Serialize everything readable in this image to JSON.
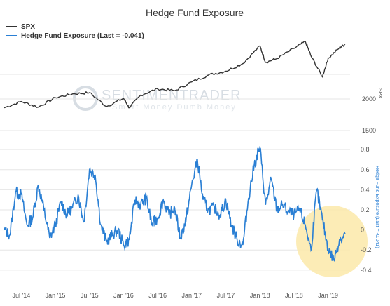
{
  "chart_data": [
    {
      "type": "line",
      "title": "Hedge Fund Exposure",
      "series": [
        {
          "name": "SPX",
          "color": "#333333",
          "x": [
            "2014-04",
            "2014-07",
            "2014-10",
            "2015-01",
            "2015-04",
            "2015-07",
            "2015-10",
            "2016-01",
            "2016-02",
            "2016-04",
            "2016-07",
            "2016-10",
            "2017-01",
            "2017-04",
            "2017-07",
            "2017-10",
            "2018-01",
            "2018-02",
            "2018-04",
            "2018-07",
            "2018-09",
            "2018-10",
            "2018-12",
            "2019-01",
            "2019-03",
            "2019-04"
          ],
          "values": [
            1860,
            1960,
            1870,
            2020,
            2080,
            2100,
            1880,
            2010,
            1860,
            2060,
            2160,
            2130,
            2270,
            2380,
            2440,
            2560,
            2840,
            2580,
            2640,
            2800,
            2910,
            2680,
            2350,
            2640,
            2810,
            2870
          ]
        }
      ],
      "y_axis": {
        "side": "right",
        "ticks": [
          "1500",
          "2000"
        ],
        "label": "SPX",
        "range": [
          1500,
          2900
        ]
      },
      "x_axis": {
        "ticks": [
          "Jul '14",
          "Jan '15",
          "Jul '15",
          "Jan '16",
          "Jul '16",
          "Jan '17",
          "Jul '17",
          "Jan '18",
          "Jul '18",
          "Jan '19"
        ]
      }
    },
    {
      "type": "line",
      "series": [
        {
          "name": "Hedge Fund Exposure (Last = -0.041)",
          "color": "#2a7fd4",
          "x": [
            "2014-04",
            "2014-05",
            "2014-06",
            "2014-07",
            "2014-08",
            "2014-09",
            "2014-10",
            "2014-11",
            "2014-12",
            "2015-01",
            "2015-02",
            "2015-03",
            "2015-04",
            "2015-05",
            "2015-06",
            "2015-07",
            "2015-08",
            "2015-09",
            "2015-10",
            "2015-11",
            "2015-12",
            "2016-01",
            "2016-02",
            "2016-03",
            "2016-04",
            "2016-05",
            "2016-06",
            "2016-07",
            "2016-08",
            "2016-09",
            "2016-10",
            "2016-11",
            "2016-12",
            "2017-01",
            "2017-02",
            "2017-03",
            "2017-04",
            "2017-05",
            "2017-06",
            "2017-07",
            "2017-08",
            "2017-09",
            "2017-10",
            "2017-11",
            "2017-12",
            "2018-01",
            "2018-02",
            "2018-03",
            "2018-04",
            "2018-05",
            "2018-06",
            "2018-07",
            "2018-08",
            "2018-09",
            "2018-10",
            "2018-11",
            "2018-12",
            "2019-01",
            "2019-02",
            "2019-03",
            "2019-04"
          ],
          "values": [
            0.0,
            -0.05,
            0.38,
            0.35,
            0.05,
            0.12,
            0.45,
            0.2,
            -0.08,
            0.05,
            0.28,
            0.15,
            0.22,
            0.35,
            0.08,
            0.6,
            0.55,
            0.05,
            -0.12,
            -0.05,
            0.0,
            -0.15,
            -0.1,
            0.3,
            0.25,
            0.32,
            0.05,
            0.12,
            0.3,
            0.15,
            0.22,
            -0.08,
            0.1,
            0.45,
            0.7,
            0.3,
            0.2,
            0.22,
            0.15,
            0.3,
            0.05,
            -0.1,
            -0.15,
            0.32,
            0.65,
            0.82,
            0.25,
            0.5,
            0.2,
            0.25,
            0.18,
            0.15,
            0.2,
            0.05,
            -0.2,
            0.4,
            0.1,
            -0.18,
            -0.3,
            -0.1,
            -0.04
          ]
        }
      ],
      "y_axis": {
        "side": "right",
        "ticks": [
          "-0.4",
          "-0.2",
          "0",
          "0.2",
          "0.4",
          "0.6",
          "0.8"
        ],
        "label": "Hedge Fund Exposure (Last = -0.041)",
        "range": [
          -0.45,
          0.85
        ]
      }
    }
  ],
  "legend": {
    "spx": {
      "label": "SPX",
      "color": "#333333"
    },
    "hfe": {
      "label": "Hedge Fund Exposure (Last = -0.041)",
      "color": "#2a7fd4"
    }
  },
  "watermark": {
    "line1": "SENTIMENTRADER",
    "line2": "Smart Money Dumb Money"
  },
  "highlight": {
    "color": "#fbe9a9",
    "note": "highlighted recent low exposure"
  }
}
